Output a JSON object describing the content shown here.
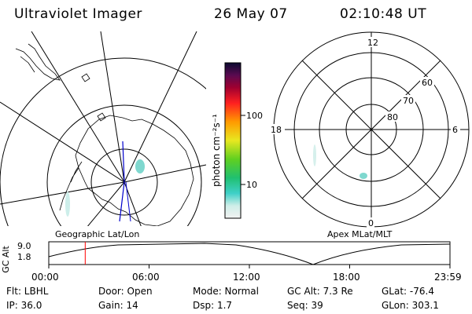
{
  "header": {
    "instrument": "Ultraviolet Imager",
    "date": "26 May 07",
    "time": "02:10:48 UT"
  },
  "colorbar": {
    "label": "photon cm⁻²s⁻¹",
    "ticks": [
      "100",
      "10"
    ]
  },
  "polar_plot": {
    "mlt_labels": {
      "top": "12",
      "left": "18",
      "right": "6",
      "bottom": "0"
    },
    "lat_labels": [
      "60",
      "70",
      "80"
    ]
  },
  "panel_labels": {
    "geographic": "Geographic Lat/Lon",
    "apex": "Apex MLat/MLT"
  },
  "altitude_plot": {
    "ylabel": "GC Alt",
    "yticks": [
      "9.0",
      "1.8"
    ],
    "xticks": [
      "00:00",
      "06:00",
      "12:00",
      "18:00",
      "23:59"
    ],
    "cursor_time_hours": 2.18
  },
  "status": {
    "row1": [
      {
        "key": "Flt:",
        "value": "LBHL"
      },
      {
        "key": "Door:",
        "value": "Open"
      },
      {
        "key": "Mode:",
        "value": "Normal"
      },
      {
        "key": "GC Alt:",
        "value": "7.3 Re"
      },
      {
        "key": "GLat:",
        "value": "-76.4"
      }
    ],
    "row2": [
      {
        "key": "IP:",
        "value": "36.0"
      },
      {
        "key": "Gain:",
        "value": "14"
      },
      {
        "key": "Dsp:",
        "value": "1.7"
      },
      {
        "key": "Seq:",
        "value": "39"
      },
      {
        "key": "GLon:",
        "value": "303.1"
      }
    ]
  },
  "colors": {
    "cursor": "#ff0000",
    "track": "#0000cc",
    "aurora": "#7fd8cf"
  }
}
